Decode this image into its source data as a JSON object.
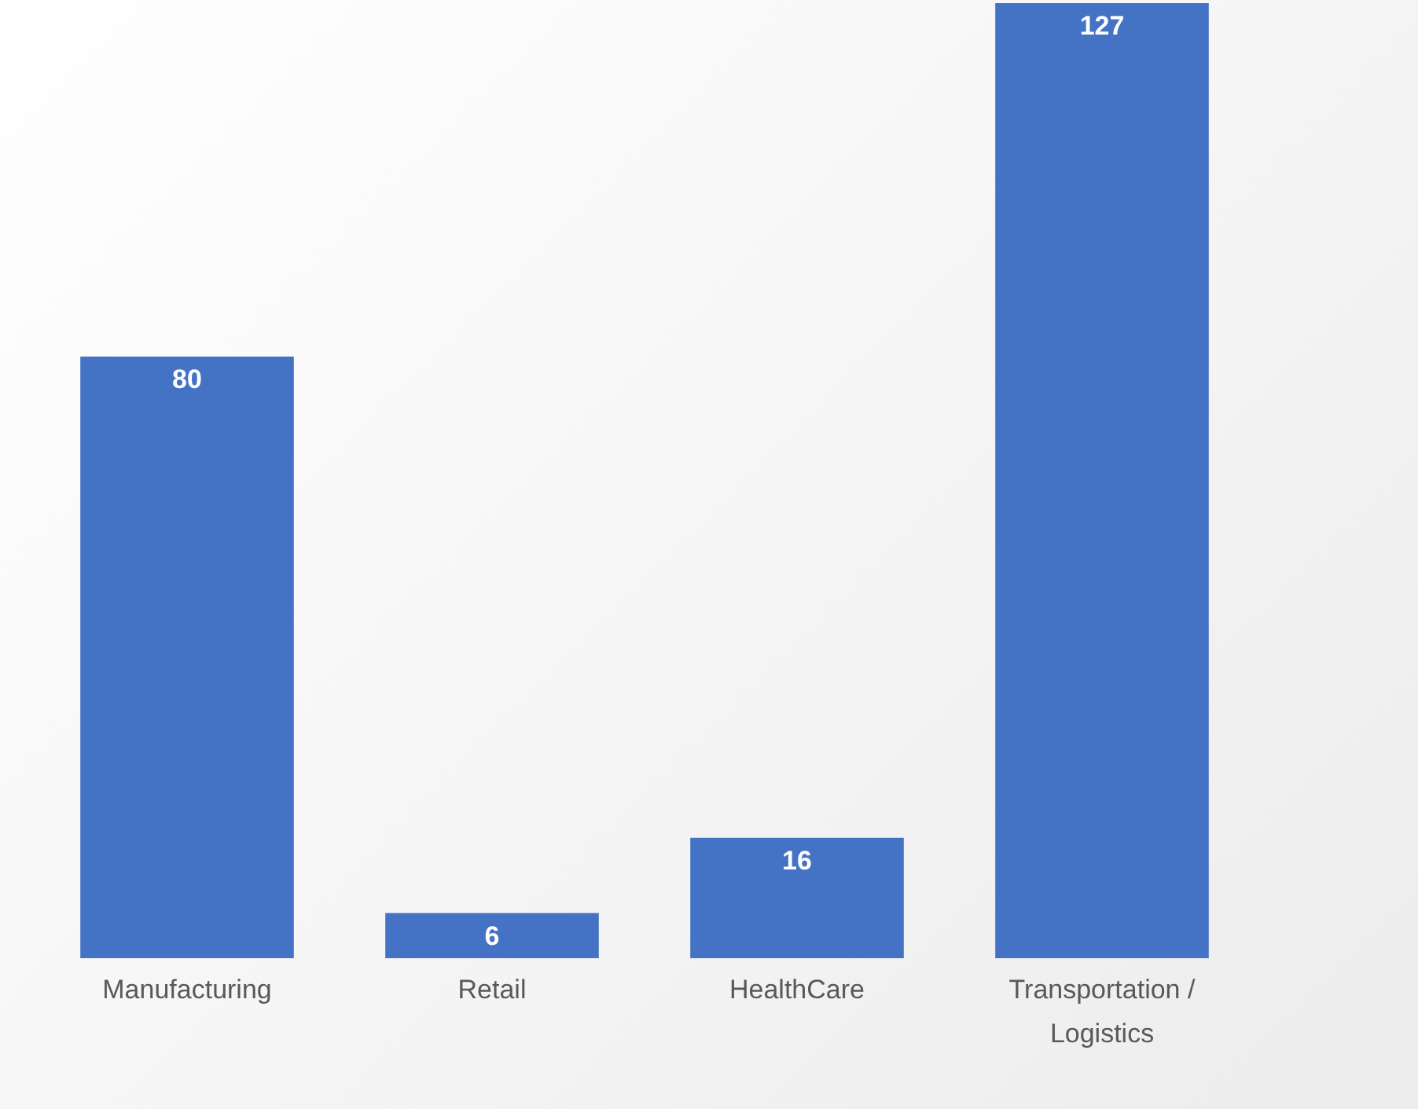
{
  "chart_data": {
    "type": "bar",
    "categories": [
      "Manufacturing",
      "Retail",
      "HealthCare",
      "Transportation / Logistics"
    ],
    "values": [
      80,
      6,
      16,
      127
    ],
    "color": "#4472c4",
    "data_labels": true
  }
}
